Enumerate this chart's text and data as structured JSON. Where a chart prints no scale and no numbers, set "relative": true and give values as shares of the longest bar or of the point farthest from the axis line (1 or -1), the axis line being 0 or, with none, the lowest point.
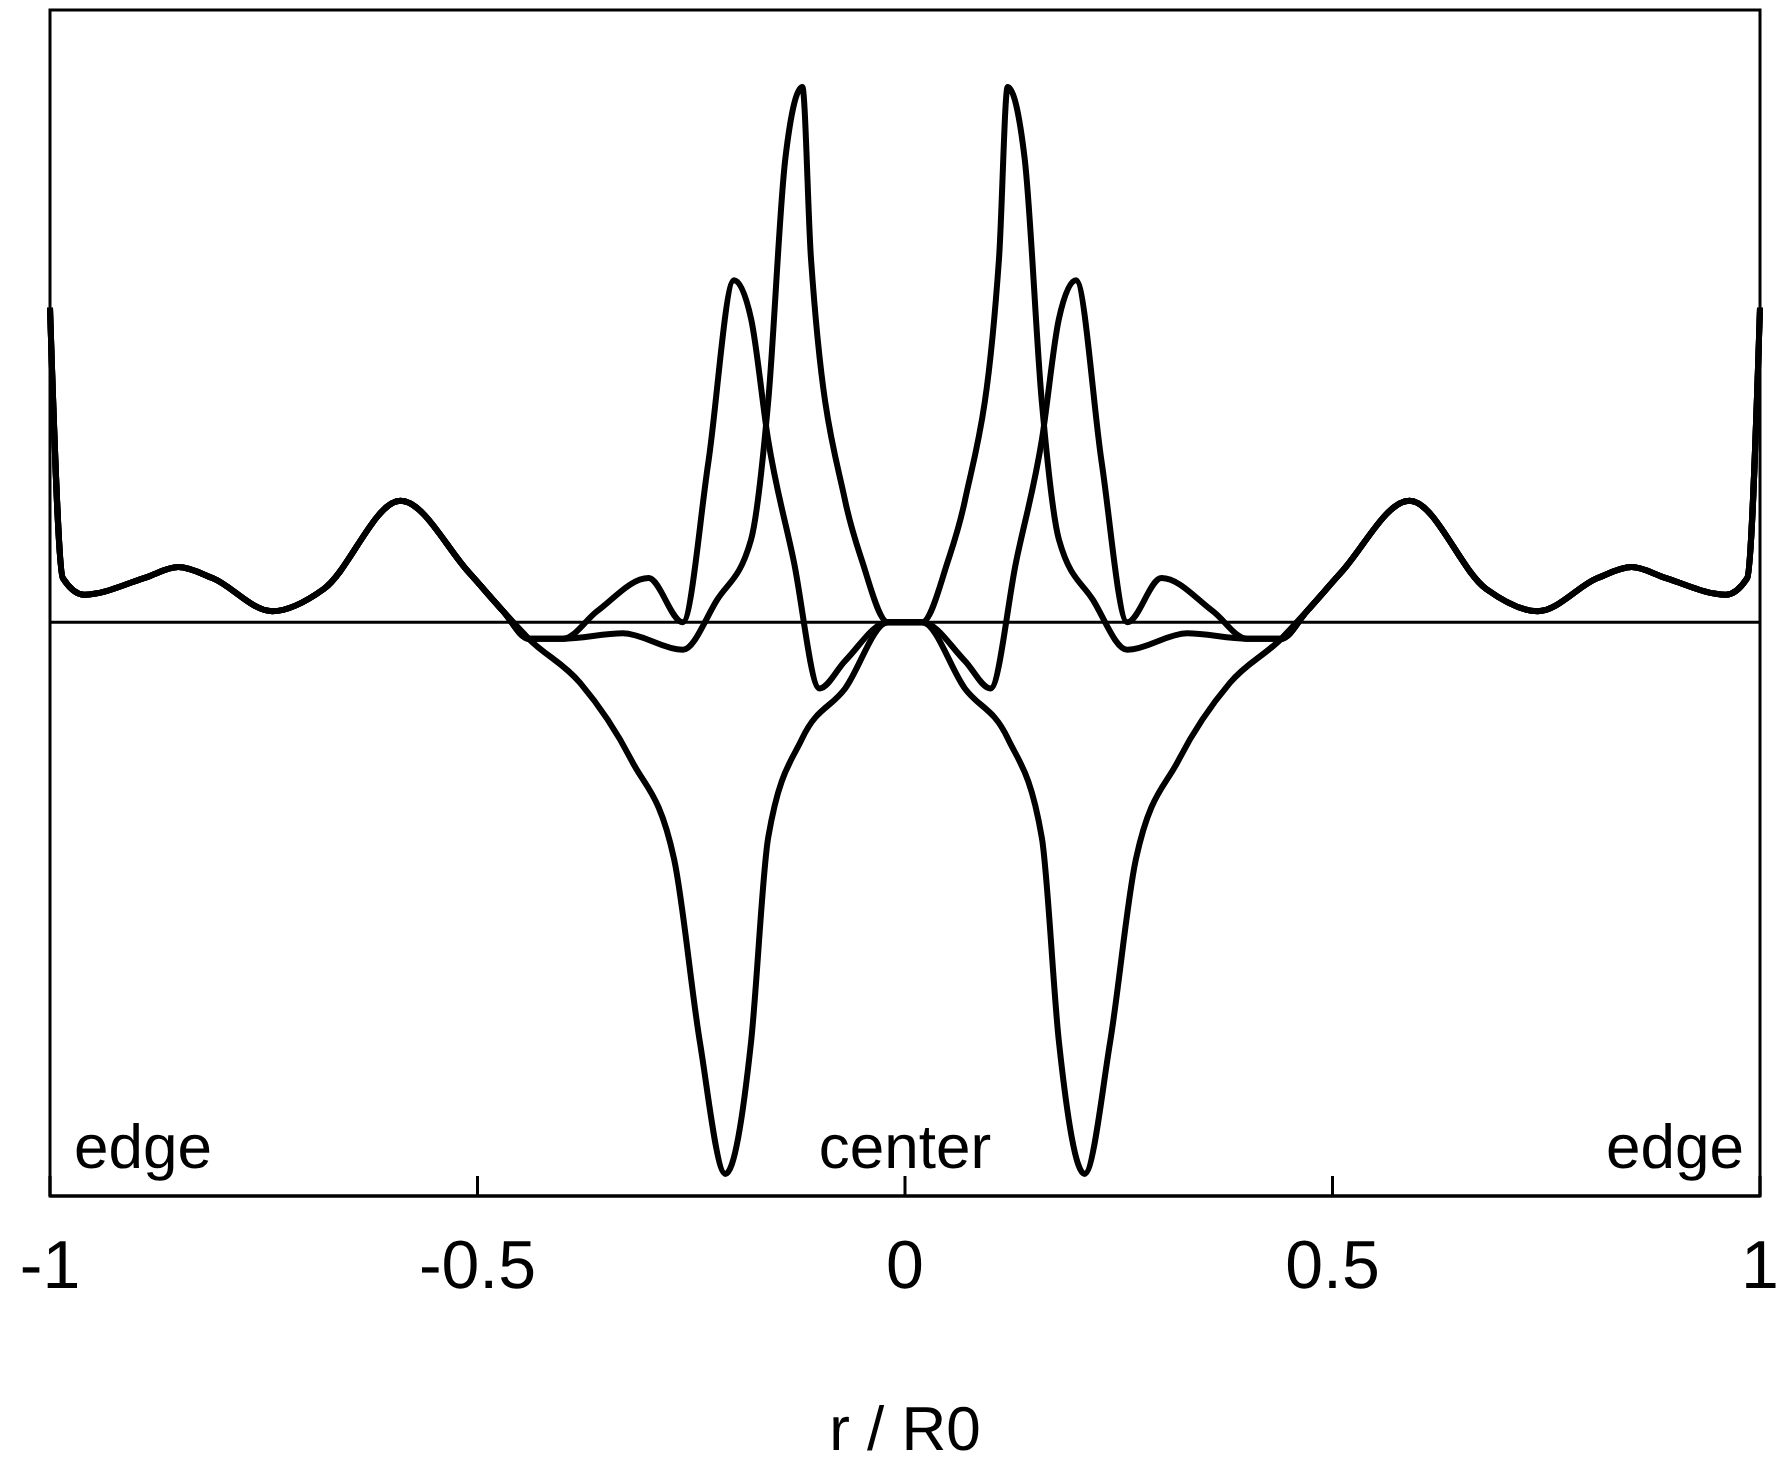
{
  "chart_data": {
    "type": "line",
    "relative": true,
    "xlabel": "r / R0",
    "xlim": [
      -1,
      1
    ],
    "xticks": [
      -1,
      -0.5,
      0,
      0.5,
      1
    ],
    "tick_labels": "x",
    "ref_lines": [
      {
        "axis": "y",
        "value": 0,
        "color": "#000000"
      }
    ],
    "annotations": [
      "edge",
      "center",
      "edge"
    ],
    "series": [
      {
        "color": "#000000",
        "x": [
          -1.0,
          -0.985,
          -0.96,
          -0.89,
          -0.85,
          -0.81,
          -0.74,
          -0.68,
          -0.59,
          -0.51,
          -0.47,
          -0.44,
          -0.4,
          -0.33,
          -0.26,
          -0.22,
          -0.18,
          -0.16,
          -0.14,
          -0.12,
          -0.11,
          -0.07,
          -0.05,
          -0.02,
          0.02,
          0.05,
          0.07,
          0.11,
          0.12,
          0.14,
          0.16,
          0.18,
          0.22,
          0.26,
          0.33,
          0.4,
          0.44,
          0.47,
          0.51,
          0.59,
          0.68,
          0.74,
          0.81,
          0.85,
          0.89,
          0.96,
          0.985,
          1.0
        ],
        "values": [
          0.57,
          0.08,
          0.05,
          0.08,
          0.1,
          0.08,
          0.02,
          0.06,
          0.22,
          0.09,
          0.02,
          -0.03,
          -0.03,
          -0.02,
          -0.05,
          0.04,
          0.15,
          0.4,
          0.84,
          0.97,
          0.66,
          0.22,
          0.11,
          0,
          0,
          0.11,
          0.22,
          0.66,
          0.97,
          0.84,
          0.4,
          0.15,
          0.04,
          -0.05,
          -0.02,
          -0.03,
          -0.03,
          0.02,
          0.09,
          0.22,
          0.06,
          0.02,
          0.08,
          0.1,
          0.08,
          0.05,
          0.08,
          0.57
        ]
      },
      {
        "color": "#000000",
        "x": [
          -1.0,
          -0.985,
          -0.96,
          -0.89,
          -0.85,
          -0.81,
          -0.74,
          -0.68,
          -0.59,
          -0.51,
          -0.47,
          -0.44,
          -0.4,
          -0.36,
          -0.3,
          -0.26,
          -0.23,
          -0.2,
          -0.18,
          -0.16,
          -0.13,
          -0.1,
          -0.07,
          -0.02,
          0.02,
          0.07,
          0.1,
          0.13,
          0.16,
          0.18,
          0.2,
          0.23,
          0.26,
          0.3,
          0.36,
          0.4,
          0.44,
          0.47,
          0.51,
          0.59,
          0.68,
          0.74,
          0.81,
          0.85,
          0.89,
          0.96,
          0.985,
          1.0
        ],
        "values": [
          0.57,
          0.08,
          0.05,
          0.08,
          0.1,
          0.08,
          0.02,
          0.06,
          0.22,
          0.09,
          0.02,
          -0.03,
          -0.03,
          0.02,
          0.08,
          0,
          0.29,
          0.62,
          0.55,
          0.33,
          0.11,
          -0.12,
          -0.07,
          0,
          0,
          -0.07,
          -0.12,
          0.11,
          0.33,
          0.55,
          0.62,
          0.29,
          0,
          0.08,
          0.02,
          -0.03,
          -0.03,
          0.02,
          0.09,
          0.22,
          0.06,
          0.02,
          0.08,
          0.1,
          0.08,
          0.05,
          0.08,
          0.57
        ]
      },
      {
        "color": "#000000",
        "x": [
          -1.0,
          -0.985,
          -0.96,
          -0.89,
          -0.85,
          -0.81,
          -0.74,
          -0.68,
          -0.59,
          -0.51,
          -0.47,
          -0.44,
          -0.38,
          -0.32,
          -0.27,
          -0.24,
          -0.21,
          -0.18,
          -0.16,
          -0.12,
          -0.07,
          -0.02,
          0.02,
          0.07,
          0.12,
          0.16,
          0.18,
          0.21,
          0.24,
          0.27,
          0.32,
          0.38,
          0.44,
          0.47,
          0.51,
          0.59,
          0.68,
          0.74,
          0.81,
          0.85,
          0.89,
          0.96,
          0.985,
          1.0
        ],
        "values": [
          0.57,
          0.08,
          0.05,
          0.08,
          0.1,
          0.08,
          0.02,
          0.06,
          0.22,
          0.09,
          0.02,
          -0.03,
          -0.11,
          -0.25,
          -0.43,
          -0.76,
          -1,
          -0.76,
          -0.39,
          -0.21,
          -0.12,
          0,
          0,
          -0.12,
          -0.21,
          -0.39,
          -0.76,
          -1,
          -0.76,
          -0.43,
          -0.25,
          -0.11,
          -0.03,
          0.02,
          0.09,
          0.22,
          0.06,
          0.02,
          0.08,
          0.1,
          0.08,
          0.05,
          0.08,
          0.57
        ]
      }
    ]
  }
}
